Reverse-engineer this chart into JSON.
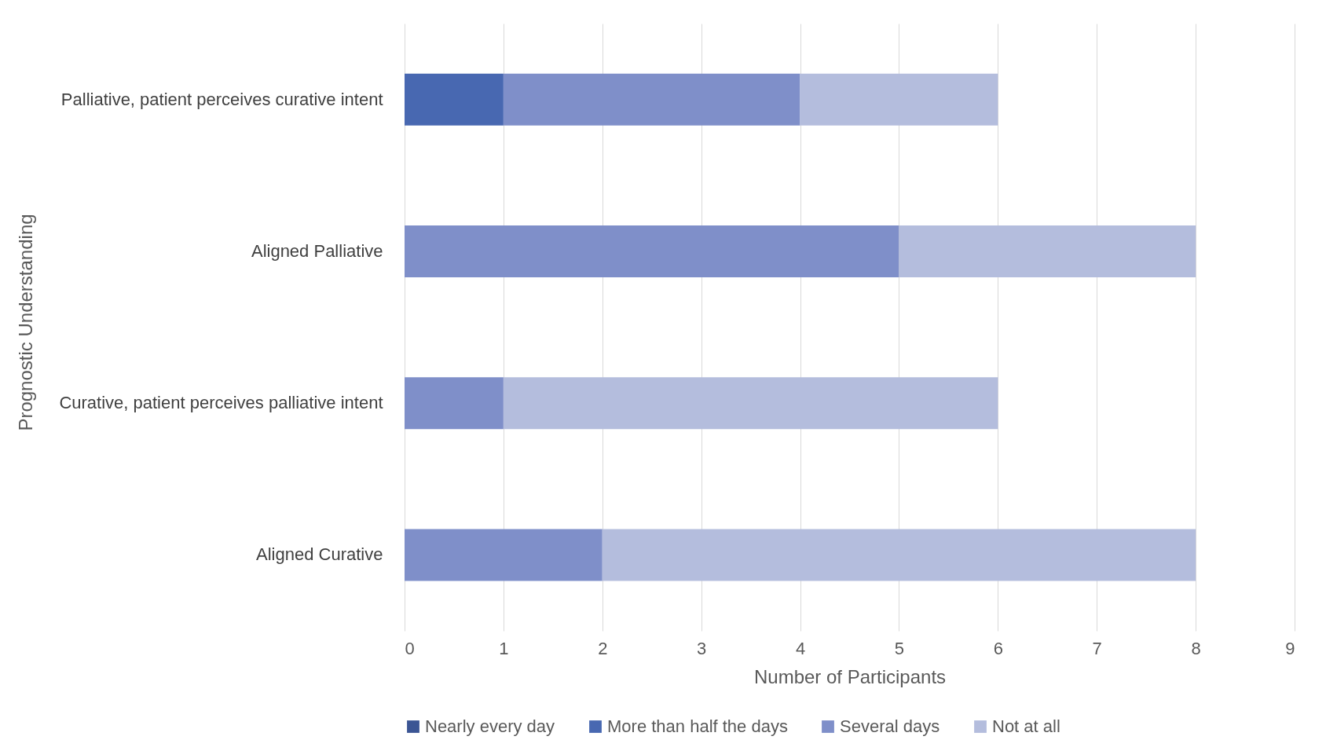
{
  "chart_data": {
    "type": "bar",
    "orientation": "horizontal",
    "stacked": true,
    "xlabel": "Number of Participants",
    "ylabel": "Prognostic Understanding",
    "categories": [
      "Palliative, patient perceives curative intent",
      "Aligned Palliative",
      "Curative, patient perceives palliative intent",
      "Aligned Curative"
    ],
    "series": [
      {
        "name": "Nearly every day",
        "color": "#3b5594",
        "values": [
          0,
          0,
          0,
          0
        ]
      },
      {
        "name": "More than half the days",
        "color": "#4868b1",
        "values": [
          1,
          0,
          0,
          0
        ]
      },
      {
        "name": "Several days",
        "color": "#7f8fc9",
        "values": [
          3,
          5,
          1,
          2
        ]
      },
      {
        "name": "Not at all",
        "color": "#b4bddd",
        "values": [
          2,
          3,
          5,
          6
        ]
      }
    ],
    "xlim": [
      0,
      9
    ],
    "xticks": [
      0,
      1,
      2,
      3,
      4,
      5,
      6,
      7,
      8,
      9
    ],
    "grid": "x",
    "legend": "bottom"
  }
}
